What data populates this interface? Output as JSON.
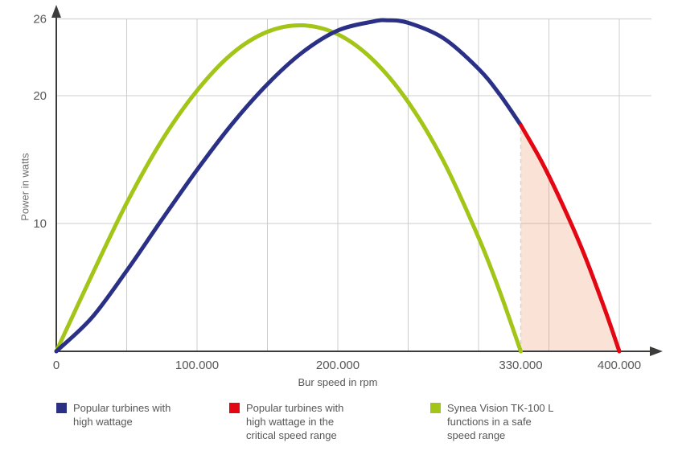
{
  "chart_data": {
    "type": "line",
    "title": "",
    "xlabel": "Bur speed in rpm",
    "ylabel": "Power in watts",
    "xlim": [
      0,
      430000
    ],
    "ylim": [
      0,
      27
    ],
    "grid": true,
    "legend_position": "bottom",
    "x_ticks": [
      {
        "value": 0,
        "label": "0"
      },
      {
        "value": 100000,
        "label": "100.000"
      },
      {
        "value": 200000,
        "label": "200.000"
      },
      {
        "value": 330000,
        "label": "330.000"
      },
      {
        "value": 400000,
        "label": "400.000"
      }
    ],
    "y_ticks": [
      {
        "value": 10,
        "label": "10"
      },
      {
        "value": 20,
        "label": "20"
      },
      {
        "value": 26,
        "label": "26"
      }
    ],
    "x_gridlines": [
      50000,
      100000,
      150000,
      200000,
      250000,
      300000,
      350000,
      400000
    ],
    "y_gridlines": [
      10,
      20,
      26
    ],
    "critical_speed_boundary": 330000,
    "series": [
      {
        "id": "blue-turbines",
        "name": "Popular turbines with high wattage",
        "color": "#2b3087",
        "points": [
          [
            0,
            0
          ],
          [
            25000,
            2.6
          ],
          [
            50000,
            6.3
          ],
          [
            75000,
            10.3
          ],
          [
            100000,
            14.2
          ],
          [
            125000,
            17.8
          ],
          [
            150000,
            20.9
          ],
          [
            175000,
            23.4
          ],
          [
            200000,
            25.1
          ],
          [
            225000,
            25.8
          ],
          [
            235000,
            25.9
          ],
          [
            250000,
            25.7
          ],
          [
            275000,
            24.5
          ],
          [
            300000,
            22.1
          ],
          [
            315000,
            20.1
          ],
          [
            330000,
            17.7
          ]
        ]
      },
      {
        "id": "red-critical",
        "name": "Popular turbines with high wattage in the critical speed range",
        "color": "#e30613",
        "fill_under": "rgba(236,144,92,0.25)",
        "points": [
          [
            330000,
            17.7
          ],
          [
            345000,
            14.8
          ],
          [
            360000,
            11.4
          ],
          [
            375000,
            7.6
          ],
          [
            390000,
            3.2
          ],
          [
            400000,
            0
          ]
        ]
      },
      {
        "id": "green-synea",
        "name": "Synea Vision TK-100 L functions in a safe speed range",
        "color": "#a2c517",
        "points": [
          [
            0,
            0
          ],
          [
            25000,
            5.9
          ],
          [
            50000,
            11.6
          ],
          [
            75000,
            16.5
          ],
          [
            100000,
            20.4
          ],
          [
            125000,
            23.3
          ],
          [
            150000,
            25.0
          ],
          [
            175000,
            25.5
          ],
          [
            200000,
            24.8
          ],
          [
            225000,
            22.8
          ],
          [
            250000,
            19.5
          ],
          [
            275000,
            14.9
          ],
          [
            300000,
            8.9
          ],
          [
            315000,
            4.7
          ],
          [
            330000,
            0
          ]
        ]
      }
    ]
  },
  "legend": {
    "items": [
      {
        "label": "Popular turbines with\nhigh wattage",
        "color": "#2b3087"
      },
      {
        "label": "Popular turbines with\nhigh wattage in the\ncritical speed range",
        "color": "#e30613"
      },
      {
        "label": "Synea Vision TK-100 L\nfunctions in a safe\nspeed range",
        "color": "#a2c517"
      }
    ]
  },
  "colors": {
    "axis": "#3c3c3b",
    "grid": "#cccccc",
    "dashed_line": "#d6d3d0",
    "text": "#575756",
    "background": "#ffffff"
  }
}
